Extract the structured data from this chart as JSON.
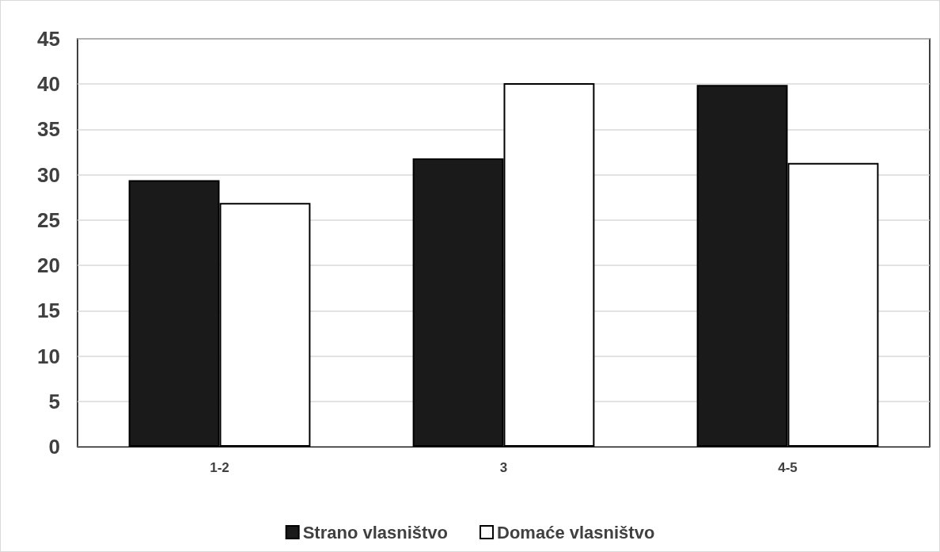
{
  "chart_data": {
    "type": "bar",
    "categories": [
      "1-2",
      "3",
      "4-5"
    ],
    "series": [
      {
        "name": "Strano vlasništvo",
        "color": "#1a1a1a",
        "values": [
          29.4,
          31.8,
          39.9
        ]
      },
      {
        "name": "Domaće vlasništvo",
        "color": "#ffffff",
        "values": [
          26.9,
          40.1,
          31.3
        ]
      }
    ],
    "ylim": [
      0,
      45
    ],
    "yticks": [
      0,
      5,
      10,
      15,
      20,
      25,
      30,
      35,
      40,
      45
    ],
    "grid": "y",
    "legend": "bottom"
  }
}
